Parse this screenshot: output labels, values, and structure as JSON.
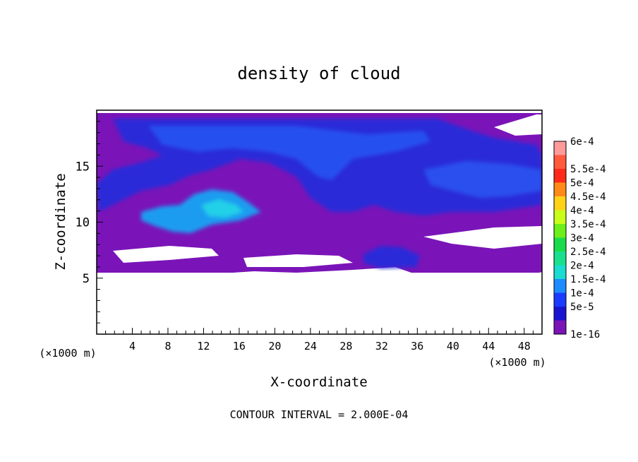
{
  "chart_data": {
    "type": "heatmap",
    "title": "density of cloud",
    "xlabel": "X-coordinate",
    "ylabel": "Z-coordinate",
    "x_unit": "(×1000 m)",
    "x_unit_right": "(×1000 m)",
    "xlim": [
      0,
      50
    ],
    "ylim": [
      0,
      20
    ],
    "x_ticks": [
      4,
      8,
      12,
      16,
      20,
      24,
      28,
      32,
      36,
      40,
      44,
      48
    ],
    "y_ticks": [
      5,
      10,
      15
    ],
    "footer": "CONTOUR INTERVAL = 2.000E-04",
    "colorbar": {
      "labels": [
        "6e-4",
        "5.5e-4",
        "5e-4",
        "4.5e-4",
        "4e-4",
        "3.5e-4",
        "3e-4",
        "2.5e-4",
        "2e-4",
        "1.5e-4",
        "1e-4",
        "5e-5",
        "1e-16"
      ],
      "colors": [
        "#ff9a9a",
        "#ff5a3c",
        "#ff2a1a",
        "#ff8a1a",
        "#ffd21a",
        "#c8ff1a",
        "#6cef1a",
        "#1adc4a",
        "#1ae08e",
        "#1adccf",
        "#1a8cff",
        "#1a3cff",
        "#1a14d0",
        "#7a14b8"
      ]
    }
  }
}
